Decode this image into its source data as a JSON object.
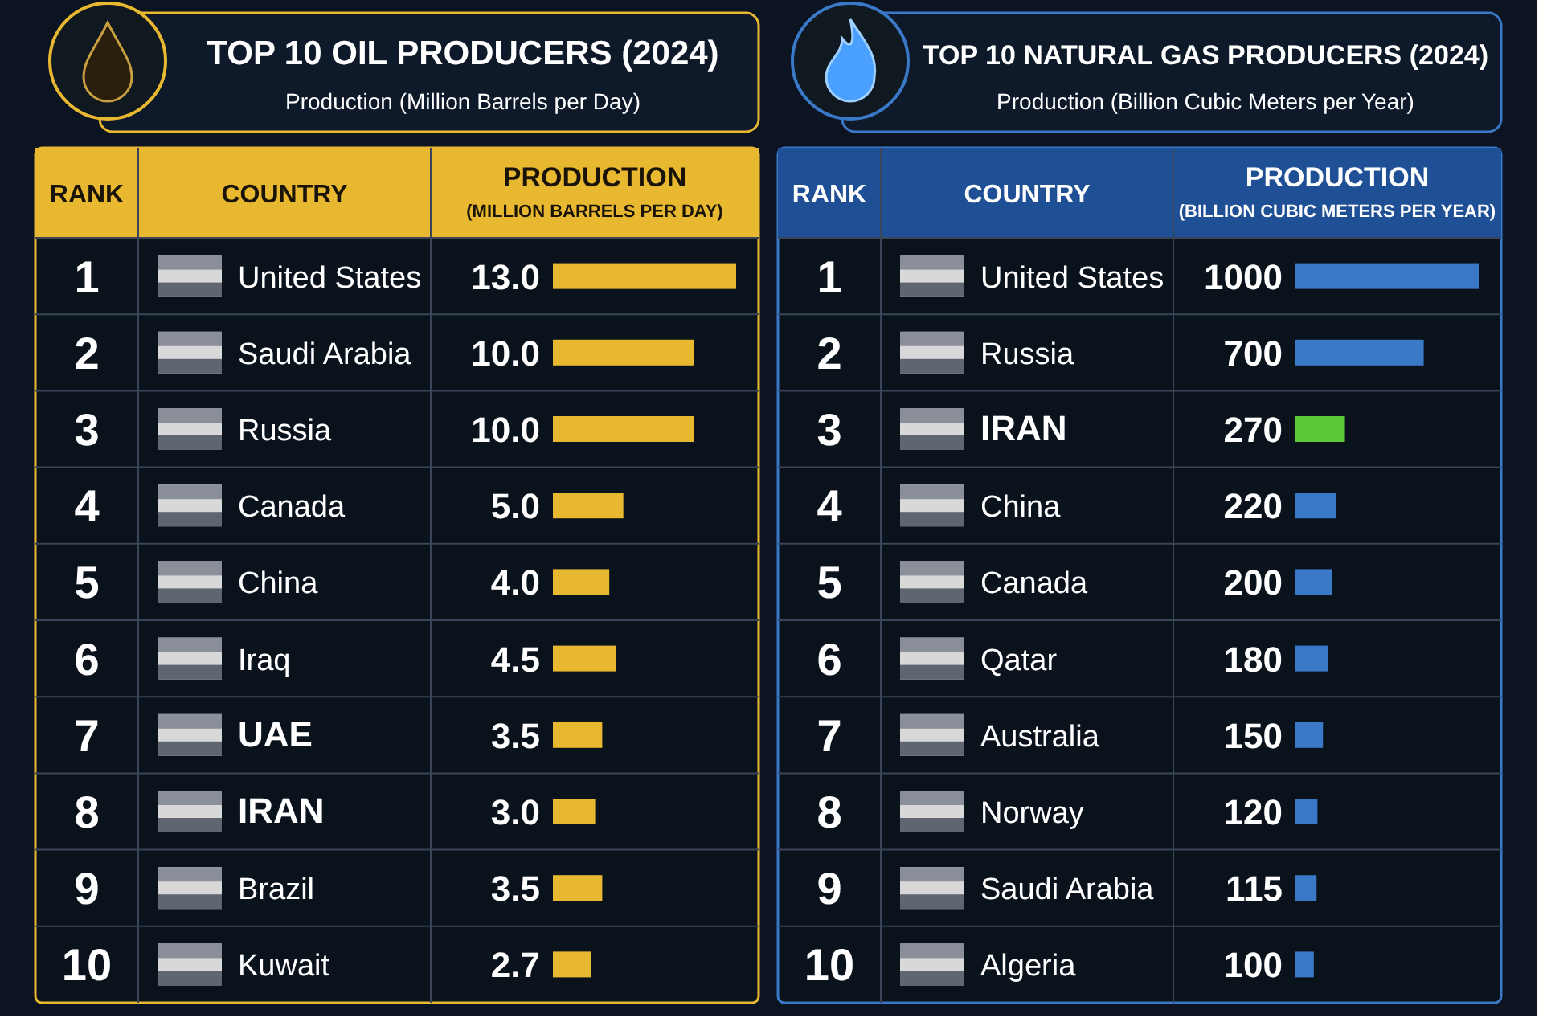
{
  "chart_data": [
    {
      "type": "bar",
      "orientation": "horizontal",
      "title": "TOP 10 OIL PRODUCERS (2024)",
      "subtitle": "Production (Million Barrels per Day)",
      "ylabel": "COUNTRY",
      "xlabel": "PRODUCTION\n(MILLION BARRELS PER DAY)",
      "categories": [
        "United States",
        "Saudi Arabia",
        "Russia",
        "Canada",
        "China",
        "Iraq",
        "UAE",
        "IRAN",
        "Brazil",
        "Kuwait"
      ],
      "values": [
        13.0,
        10.0,
        10.0,
        5.0,
        4.0,
        4.5,
        3.5,
        3.0,
        3.5,
        2.7
      ],
      "value_labels": [
        "13.0",
        "10.0",
        "10.0",
        "5.0",
        "4.0",
        "4.5",
        "3.5",
        "3.0",
        "3.5",
        "2.7"
      ],
      "color": "#e8b830",
      "annotations": [
        "RANK",
        "1",
        "2",
        "3",
        "4",
        "5",
        "6",
        "7",
        "8",
        "9",
        "10"
      ]
    },
    {
      "type": "bar",
      "orientation": "horizontal",
      "title": "TOP 10 NATURAL GAS PRODUCERS (2024)",
      "subtitle": "Production (Billion Cubic Meters per Year)",
      "ylabel": "COUNTRY",
      "xlabel": "PRODUCTION\n(BILLION CUBIC METERS PER YEAR)",
      "categories": [
        "United States",
        "Russia",
        "IRAN",
        "China",
        "Canada",
        "Qatar",
        "Australia",
        "Norway",
        "Saudi Arabia",
        "Algeria"
      ],
      "values": [
        1000,
        700,
        270,
        220,
        200,
        180,
        150,
        120,
        115,
        100
      ],
      "data_labels": true,
      "colors": [
        "#3a78c8",
        "#3a78c8",
        "#5cc83a",
        "#3a78c8",
        "#3a78c8",
        "#3a78c8",
        "#3a78c8",
        "#3a78c8",
        "#3a78c8",
        "#3a78c8"
      ],
      "annotations": [
        "RANK",
        "1",
        "2",
        "3",
        "4",
        "5",
        "6",
        "7",
        "8",
        "9",
        "10"
      ]
    }
  ]
}
